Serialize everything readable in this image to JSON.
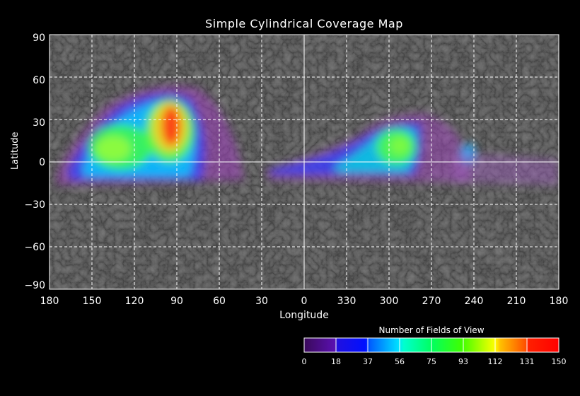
{
  "title": "Simple Cylindrical Coverage Map",
  "y_axis": {
    "label": "Latitude",
    "ticks": [
      "90",
      "60",
      "30",
      "0",
      "−30",
      "−60",
      "−90"
    ]
  },
  "x_axis": {
    "label": "Longitude",
    "ticks": [
      "180",
      "150",
      "120",
      "90",
      "60",
      "30",
      "0",
      "330",
      "300",
      "270",
      "240",
      "210",
      "180"
    ]
  },
  "colorbar": {
    "title": "Number of Fields of View",
    "ticks": [
      "0",
      "18",
      "37",
      "56",
      "75",
      "93",
      "112",
      "131",
      "150"
    ],
    "colors": [
      "#3a0a5a",
      "#5a10b0",
      "#0010ff",
      "#0090ff",
      "#00ffe0",
      "#00ff60",
      "#00ff00",
      "#a0ff00",
      "#ffff00",
      "#ffa000",
      "#ff3000",
      "#ff0000"
    ]
  }
}
